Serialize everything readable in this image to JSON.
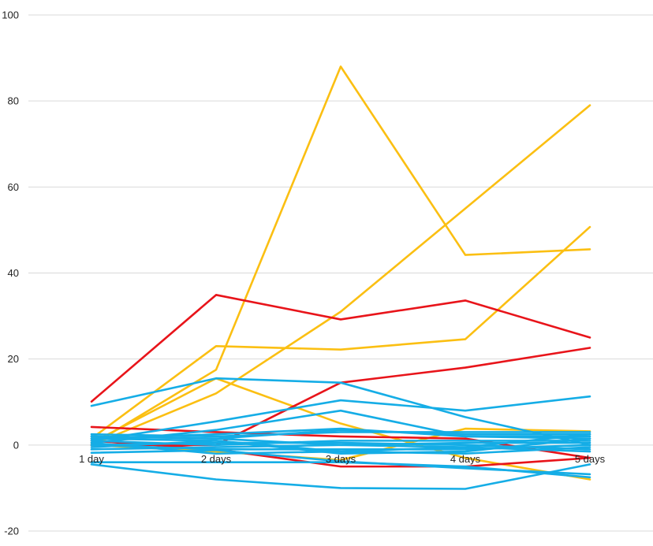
{
  "chart_data": {
    "type": "line",
    "title": "",
    "xlabel": "",
    "ylabel": "",
    "categories": [
      "1 day",
      "2 days",
      "3 days",
      "4 days",
      "5 days"
    ],
    "ylim": [
      -20,
      100
    ],
    "yticks": [
      -20,
      0,
      20,
      40,
      60,
      80,
      100
    ],
    "grid": true,
    "legend": "none",
    "colors": {
      "yellow": "#fbbf12",
      "red": "#e8141a",
      "blue": "#15ade6",
      "grid": "#d9d9d9"
    },
    "series": [
      {
        "color": "yellow",
        "values": [
          0,
          17.5,
          88,
          44.2,
          45.5
        ]
      },
      {
        "color": "yellow",
        "values": [
          0,
          12,
          31,
          55,
          79
        ]
      },
      {
        "color": "yellow",
        "values": [
          1.5,
          23,
          22.2,
          24.6,
          50.7
        ]
      },
      {
        "color": "yellow",
        "values": [
          0.5,
          15.5,
          5,
          -3,
          -8
        ]
      },
      {
        "color": "yellow",
        "values": [
          0,
          -1.5,
          -3.5,
          3.8,
          3.2
        ]
      },
      {
        "color": "red",
        "values": [
          10.1,
          34.9,
          29.2,
          33.6,
          25
        ]
      },
      {
        "color": "red",
        "values": [
          0,
          0,
          14.5,
          18,
          22.6
        ]
      },
      {
        "color": "red",
        "values": [
          4.2,
          3,
          2,
          1.5,
          -3
        ]
      },
      {
        "color": "red",
        "values": [
          1,
          -1,
          -5,
          -5,
          -3
        ]
      },
      {
        "color": "blue",
        "values": [
          9.1,
          15.5,
          14.5,
          6.5,
          0
        ]
      },
      {
        "color": "blue",
        "values": [
          1,
          5.5,
          10.4,
          8,
          11.3
        ]
      },
      {
        "color": "blue",
        "values": [
          0.5,
          3.5,
          8,
          2,
          1.5
        ]
      },
      {
        "color": "blue",
        "values": [
          -4.5,
          -8,
          -10,
          -10.2,
          -4.5
        ]
      },
      {
        "color": "blue",
        "values": [
          -4,
          -4,
          -4,
          -5,
          -7.5
        ]
      },
      {
        "color": "blue",
        "values": [
          -1.8,
          -1.2,
          -3.8,
          -5.4,
          -6.8
        ]
      },
      {
        "color": "blue",
        "values": [
          2.5,
          2,
          3,
          3,
          3
        ]
      },
      {
        "color": "blue",
        "values": [
          2,
          1.5,
          3.5,
          2.5,
          2.5
        ]
      },
      {
        "color": "blue",
        "values": [
          1.5,
          2.5,
          3.8,
          2,
          2
        ]
      },
      {
        "color": "blue",
        "values": [
          1,
          0,
          1,
          1,
          1
        ]
      },
      {
        "color": "blue",
        "values": [
          0,
          -1,
          -1,
          -1,
          0
        ]
      },
      {
        "color": "blue",
        "values": [
          -1,
          -0.5,
          0,
          0.5,
          0.5
        ]
      },
      {
        "color": "blue",
        "values": [
          0.5,
          -2,
          -1.5,
          -0.5,
          -1.5
        ]
      },
      {
        "color": "blue",
        "values": [
          -0.5,
          1,
          -1.5,
          -2,
          -0.5
        ]
      },
      {
        "color": "blue",
        "values": [
          0,
          0.5,
          0.5,
          0,
          -1
        ]
      },
      {
        "color": "blue",
        "values": [
          1.5,
          1,
          -2,
          -1.5,
          1.5
        ]
      },
      {
        "color": "blue",
        "values": [
          2,
          1.5,
          0,
          -0.5,
          2.5
        ]
      }
    ]
  }
}
